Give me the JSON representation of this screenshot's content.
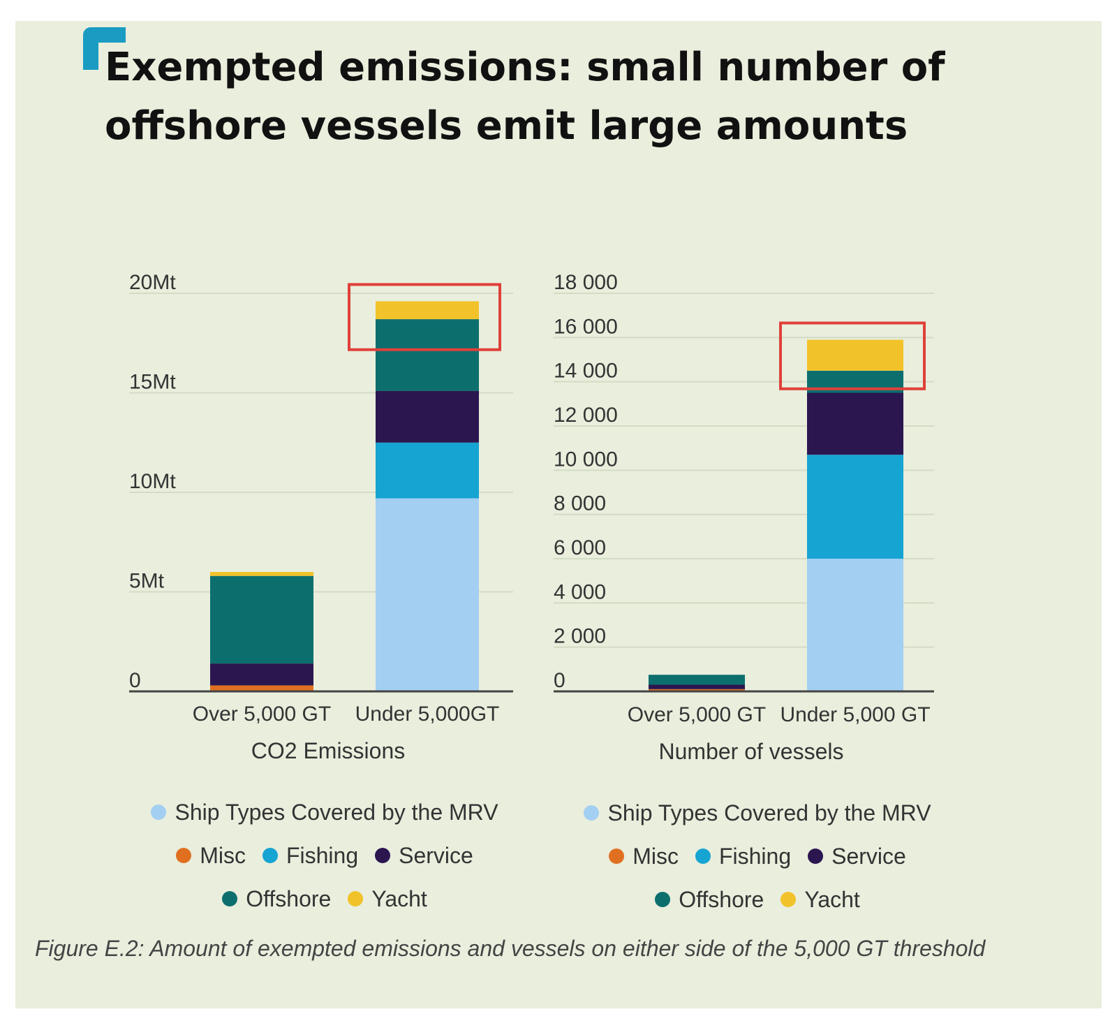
{
  "title": {
    "line1": "Exempted emissions: small number of",
    "line2": "offshore vessels emit large amounts"
  },
  "colors": {
    "background": "#e9eedd",
    "accent": "#1a9cc2",
    "highlight_box": "#e0403a",
    "Ship Types Covered by the MRV": "#a3cff2",
    "Misc": "#e07020",
    "Fishing": "#16a4d2",
    "Service": "#2b1650",
    "Offshore": "#0c6f6e",
    "Yacht": "#f2c22a"
  },
  "chart_data": [
    {
      "type": "bar",
      "stacked": true,
      "title": "CO2 Emissions",
      "xlabel": "CO2 Emissions",
      "categories": [
        "Over 5,000 GT",
        "Under 5,000GT"
      ],
      "ylim": [
        0,
        20
      ],
      "yticks": [
        0,
        5,
        10,
        15,
        20
      ],
      "ytick_labels": [
        "0",
        "5Mt",
        "10Mt",
        "15Mt",
        "20Mt"
      ],
      "highlight_category": "Under 5,000GT",
      "series": [
        {
          "name": "Ship Types Covered by the MRV",
          "values": [
            0,
            9.7
          ]
        },
        {
          "name": "Misc",
          "values": [
            0.3,
            0
          ]
        },
        {
          "name": "Fishing",
          "values": [
            0,
            2.8
          ]
        },
        {
          "name": "Service",
          "values": [
            1.1,
            2.6
          ]
        },
        {
          "name": "Offshore",
          "values": [
            4.4,
            3.6
          ]
        },
        {
          "name": "Yacht",
          "values": [
            0.2,
            0.9
          ]
        }
      ]
    },
    {
      "type": "bar",
      "stacked": true,
      "title": "Number of vessels",
      "xlabel": "Number of vessels",
      "categories": [
        "Over 5,000 GT",
        "Under 5,000 GT"
      ],
      "ylim": [
        0,
        18000
      ],
      "yticks": [
        0,
        2000,
        4000,
        6000,
        8000,
        10000,
        12000,
        14000,
        16000,
        18000
      ],
      "ytick_labels": [
        "0",
        "2 000",
        "4 000",
        "6 000",
        "8 000",
        "10 000",
        "12 000",
        "14 000",
        "16 000",
        "18 000"
      ],
      "highlight_category": "Under 5,000 GT",
      "series": [
        {
          "name": "Ship Types Covered by the MRV",
          "values": [
            0,
            6000
          ]
        },
        {
          "name": "Misc",
          "values": [
            100,
            0
          ]
        },
        {
          "name": "Fishing",
          "values": [
            0,
            4700
          ]
        },
        {
          "name": "Service",
          "values": [
            200,
            2800
          ]
        },
        {
          "name": "Offshore",
          "values": [
            450,
            1000
          ]
        },
        {
          "name": "Yacht",
          "values": [
            0,
            1400
          ]
        }
      ]
    }
  ],
  "legends": [
    {
      "rows": [
        [
          "Ship Types Covered by the MRV"
        ],
        [
          "Misc",
          "Fishing",
          "Service"
        ],
        [
          "Offshore",
          "Yacht"
        ]
      ]
    },
    {
      "rows": [
        [
          "Ship Types Covered by the MRV"
        ],
        [
          "Misc",
          "Fishing",
          "Service"
        ],
        [
          "Offshore",
          "Yacht"
        ]
      ]
    }
  ],
  "caption": "Figure E.2: Amount of exempted emissions and vessels on either side of the 5,000 GT threshold"
}
